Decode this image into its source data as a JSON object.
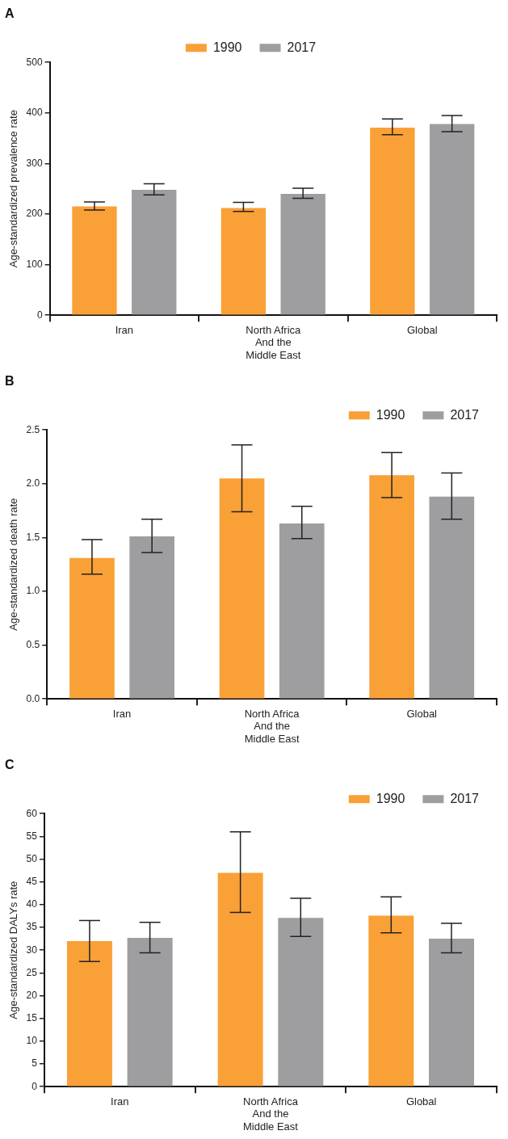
{
  "chart_data": [
    {
      "type": "bar",
      "title": "A",
      "ylabel": "Age-standardized prevalence rate",
      "categories": [
        "Iran",
        "North Africa\nAnd the\nMiddle East",
        "Global"
      ],
      "ylim": [
        0,
        500
      ],
      "yticks": [
        0,
        100,
        200,
        300,
        400,
        500
      ],
      "legend": "top",
      "grid": false,
      "series": [
        {
          "name": "1990",
          "color": "#f9a137",
          "values": [
            215,
            212,
            371
          ],
          "errors": [
            [
              208,
              224
            ],
            [
              205,
              223
            ],
            [
              357,
              388
            ]
          ]
        },
        {
          "name": "2017",
          "color": "#9e9ea0",
          "values": [
            248,
            240,
            378
          ],
          "errors": [
            [
              238,
              260
            ],
            [
              231,
              251
            ],
            [
              363,
              395
            ]
          ]
        }
      ]
    },
    {
      "type": "bar",
      "title": "B",
      "ylabel": "Age-standardized death rate",
      "categories": [
        "Iran",
        "North Africa\nAnd the\nMiddle East",
        "Global"
      ],
      "ylim": [
        0,
        2.5
      ],
      "yticks": [
        {
          "value": 0,
          "label": "0.0"
        },
        0.5,
        {
          "value": 1,
          "label": "1.0"
        },
        1.5,
        {
          "value": 2,
          "label": "2.0"
        },
        2.5
      ],
      "legend": "top right",
      "grid": false,
      "series": [
        {
          "name": "1990",
          "color": "#f9a137",
          "values": [
            1.31,
            2.05,
            2.08
          ],
          "errors": [
            [
              1.16,
              1.48
            ],
            [
              1.74,
              2.36
            ],
            [
              1.87,
              2.29
            ]
          ]
        },
        {
          "name": "2017",
          "color": "#9e9ea0",
          "values": [
            1.51,
            1.63,
            1.88
          ],
          "errors": [
            [
              1.36,
              1.67
            ],
            [
              1.49,
              1.79
            ],
            [
              1.67,
              2.1
            ]
          ]
        }
      ]
    },
    {
      "type": "bar",
      "title": "C",
      "ylabel": "Age-standardized DALYs rate",
      "categories": [
        "Iran",
        "North Africa\nAnd the\nMiddle East",
        "Global"
      ],
      "ylim": [
        0,
        60
      ],
      "yticks": [
        0,
        5,
        10,
        15,
        20,
        25,
        30,
        35,
        40,
        45,
        50,
        55,
        60
      ],
      "legend": "top right",
      "grid": false,
      "series": [
        {
          "name": "1990",
          "color": "#f9a137",
          "values": [
            32,
            47,
            37.6
          ],
          "errors": [
            [
              27.5,
              36.5
            ],
            [
              38.3,
              56
            ],
            [
              33.8,
              41.7
            ]
          ]
        },
        {
          "name": "2017",
          "color": "#9e9ea0",
          "values": [
            32.7,
            37.1,
            32.5
          ],
          "errors": [
            [
              29.4,
              36.1
            ],
            [
              33,
              41.4
            ],
            [
              29.4,
              35.9
            ]
          ]
        }
      ]
    }
  ]
}
